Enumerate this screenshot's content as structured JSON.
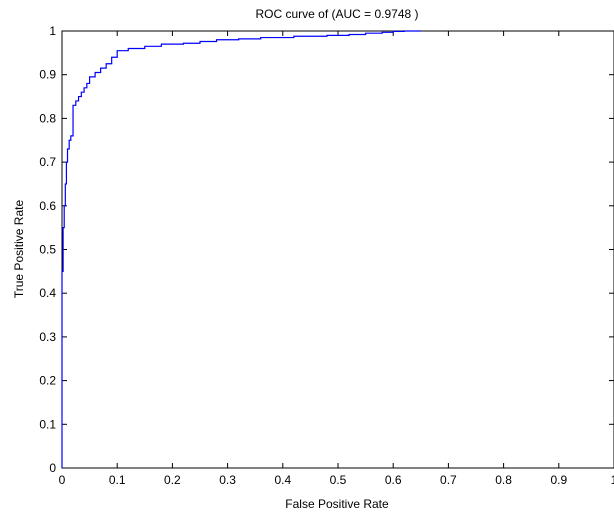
{
  "chart_data": {
    "type": "line",
    "title": "ROC curve of (AUC = 0.9748 )",
    "xlabel": "False Positive Rate",
    "ylabel": "True Positive Rate",
    "xlim": [
      0,
      1
    ],
    "ylim": [
      0,
      1
    ],
    "xticks": [
      "0",
      "0.1",
      "0.2",
      "0.3",
      "0.4",
      "0.5",
      "0.6",
      "0.7",
      "0.8",
      "0.9",
      "1"
    ],
    "yticks": [
      "0",
      "0.1",
      "0.2",
      "0.3",
      "0.4",
      "0.5",
      "0.6",
      "0.7",
      "0.8",
      "0.9",
      "1"
    ],
    "grid": false,
    "legend": "none",
    "series": [
      {
        "color": "#0000ff",
        "x": [
          0,
          0,
          0.002,
          0.002,
          0.004,
          0.004,
          0.006,
          0.006,
          0.008,
          0.008,
          0.01,
          0.01,
          0.013,
          0.013,
          0.016,
          0.016,
          0.02,
          0.02,
          0.025,
          0.025,
          0.03,
          0.03,
          0.035,
          0.035,
          0.04,
          0.04,
          0.045,
          0.045,
          0.05,
          0.05,
          0.06,
          0.06,
          0.07,
          0.07,
          0.08,
          0.08,
          0.09,
          0.09,
          0.1,
          0.1,
          0.12,
          0.12,
          0.15,
          0.15,
          0.18,
          0.18,
          0.22,
          0.22,
          0.25,
          0.25,
          0.28,
          0.28,
          0.32,
          0.32,
          0.36,
          0.36,
          0.42,
          0.42,
          0.48,
          0.48,
          0.52,
          0.52,
          0.55,
          0.55,
          0.58,
          0.58,
          0.6,
          0.6,
          0.62,
          0.62,
          0.65
        ],
        "y": [
          0,
          0.45,
          0.45,
          0.55,
          0.55,
          0.6,
          0.6,
          0.65,
          0.65,
          0.7,
          0.7,
          0.73,
          0.73,
          0.75,
          0.75,
          0.76,
          0.76,
          0.83,
          0.83,
          0.84,
          0.84,
          0.85,
          0.85,
          0.86,
          0.86,
          0.87,
          0.87,
          0.88,
          0.88,
          0.895,
          0.895,
          0.905,
          0.905,
          0.915,
          0.915,
          0.925,
          0.925,
          0.94,
          0.94,
          0.955,
          0.955,
          0.96,
          0.96,
          0.965,
          0.965,
          0.97,
          0.97,
          0.972,
          0.972,
          0.976,
          0.976,
          0.98,
          0.98,
          0.982,
          0.982,
          0.985,
          0.985,
          0.988,
          0.988,
          0.99,
          0.99,
          0.992,
          0.992,
          0.995,
          0.995,
          0.997,
          0.997,
          0.999,
          0.999,
          1.0,
          1.0
        ]
      }
    ]
  }
}
